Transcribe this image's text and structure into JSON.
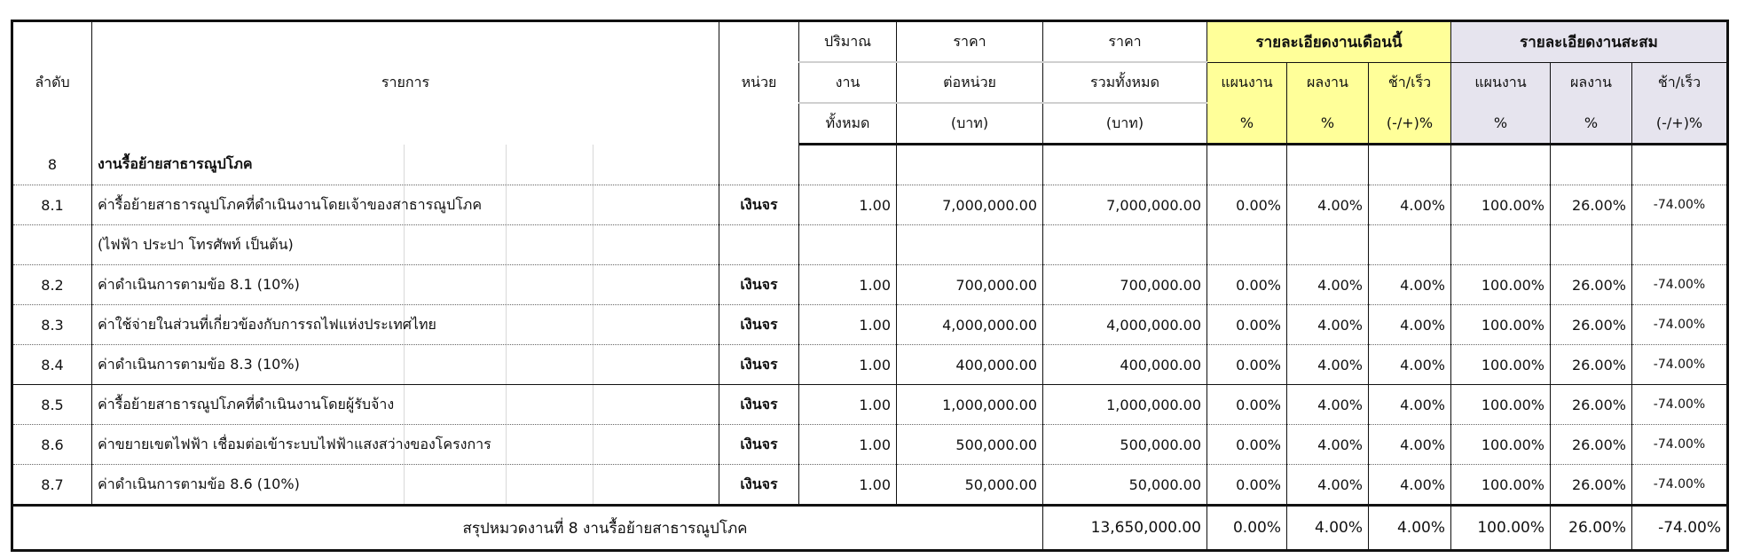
{
  "header": {
    "seq": "ลำดับ",
    "item": "รายการ",
    "unit": "หน่วย",
    "qty": [
      "ปริมาณ",
      "งาน",
      "ทั้งหมด"
    ],
    "unit_price": [
      "ราคา",
      "ต่อหน่วย",
      "(บาท)"
    ],
    "total_price": [
      "ราคา",
      "รวมทั้งหมด",
      "(บาท)"
    ],
    "this_month": {
      "title": "รายละเอียดงานเดือนนี้",
      "plan": [
        "แผนงาน",
        "%"
      ],
      "actual": [
        "ผลงาน",
        "%"
      ],
      "diff": [
        "ช้า/เร็ว",
        "(-/+)%"
      ]
    },
    "cumulative": {
      "title": "รายละเอียดงานสะสม",
      "plan": [
        "แผนงาน",
        "%"
      ],
      "actual": [
        "ผลงาน",
        "%"
      ],
      "diff": [
        "ช้า/เร็ว",
        "(-/+)%"
      ]
    }
  },
  "colors": {
    "this_month_bg": "#ffff99",
    "cumulative_bg": "#e6e4ee"
  },
  "rows": [
    {
      "seq": "8",
      "desc": "งานรื้อย้ายสาธารณูปโภค",
      "unit": "",
      "qty": "",
      "unit_price": "",
      "total": "",
      "m_plan": "",
      "m_actual": "",
      "m_diff": "",
      "c_plan": "",
      "c_actual": "",
      "c_diff": ""
    },
    {
      "seq": "8.1",
      "desc": "ค่ารื้อย้ายสาธารณูปโภคที่ดำเนินงานโดยเจ้าของสาธารณูปโภค",
      "unit": "เงินจร",
      "qty": "1.00",
      "unit_price": "7,000,000.00",
      "total": "7,000,000.00",
      "m_plan": "0.00%",
      "m_actual": "4.00%",
      "m_diff": "4.00%",
      "c_plan": "100.00%",
      "c_actual": "26.00%",
      "c_diff": "-74.00%"
    },
    {
      "seq": "",
      "desc": "(ไฟฟ้า ประปา โทรศัพท์ เป็นต้น)",
      "unit": "",
      "qty": "",
      "unit_price": "",
      "total": "",
      "m_plan": "",
      "m_actual": "",
      "m_diff": "",
      "c_plan": "",
      "c_actual": "",
      "c_diff": ""
    },
    {
      "seq": "8.2",
      "desc": "ค่าดำเนินการตามข้อ 8.1 (10%)",
      "unit": "เงินจร",
      "qty": "1.00",
      "unit_price": "700,000.00",
      "total": "700,000.00",
      "m_plan": "0.00%",
      "m_actual": "4.00%",
      "m_diff": "4.00%",
      "c_plan": "100.00%",
      "c_actual": "26.00%",
      "c_diff": "-74.00%"
    },
    {
      "seq": "8.3",
      "desc": "ค่าใช้จ่ายในส่วนที่เกี่ยวข้องกับการรถไฟแห่งประเทศไทย",
      "unit": "เงินจร",
      "qty": "1.00",
      "unit_price": "4,000,000.00",
      "total": "4,000,000.00",
      "m_plan": "0.00%",
      "m_actual": "4.00%",
      "m_diff": "4.00%",
      "c_plan": "100.00%",
      "c_actual": "26.00%",
      "c_diff": "-74.00%"
    },
    {
      "seq": "8.4",
      "desc": "ค่าดำเนินการตามข้อ 8.3 (10%)",
      "unit": "เงินจร",
      "qty": "1.00",
      "unit_price": "400,000.00",
      "total": "400,000.00",
      "m_plan": "0.00%",
      "m_actual": "4.00%",
      "m_diff": "4.00%",
      "c_plan": "100.00%",
      "c_actual": "26.00%",
      "c_diff": "-74.00%"
    },
    {
      "seq": "8.5",
      "desc": "ค่ารื้อย้ายสาธารณูปโภคที่ดำเนินงานโดยผู้รับจ้าง",
      "unit": "เงินจร",
      "qty": "1.00",
      "unit_price": "1,000,000.00",
      "total": "1,000,000.00",
      "m_plan": "0.00%",
      "m_actual": "4.00%",
      "m_diff": "4.00%",
      "c_plan": "100.00%",
      "c_actual": "26.00%",
      "c_diff": "-74.00%"
    },
    {
      "seq": "8.6",
      "desc": "ค่าขยายเขตไฟฟ้า เชื่อมต่อเข้าระบบไฟฟ้าแสงสว่างของโครงการ",
      "unit": "เงินจร",
      "qty": "1.00",
      "unit_price": "500,000.00",
      "total": "500,000.00",
      "m_plan": "0.00%",
      "m_actual": "4.00%",
      "m_diff": "4.00%",
      "c_plan": "100.00%",
      "c_actual": "26.00%",
      "c_diff": "-74.00%"
    },
    {
      "seq": "8.7",
      "desc": "ค่าดำเนินการตามข้อ 8.6 (10%)",
      "unit": "เงินจร",
      "qty": "1.00",
      "unit_price": "50,000.00",
      "total": "50,000.00",
      "m_plan": "0.00%",
      "m_actual": "4.00%",
      "m_diff": "4.00%",
      "c_plan": "100.00%",
      "c_actual": "26.00%",
      "c_diff": "-74.00%"
    }
  ],
  "summary": {
    "label": "สรุปหมวดงานที่ 8 งานรื้อย้ายสาธารณูปโภค",
    "total": "13,650,000.00",
    "m_plan": "0.00%",
    "m_actual": "4.00%",
    "m_diff": "4.00%",
    "c_plan": "100.00%",
    "c_actual": "26.00%",
    "c_diff": "-74.00%"
  }
}
